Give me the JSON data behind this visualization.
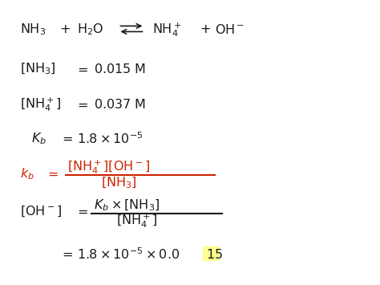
{
  "bg_color": "#ffffff",
  "black": "#1a1a1a",
  "red": "#cc2200",
  "highlight_yellow": "#ffff80"
}
